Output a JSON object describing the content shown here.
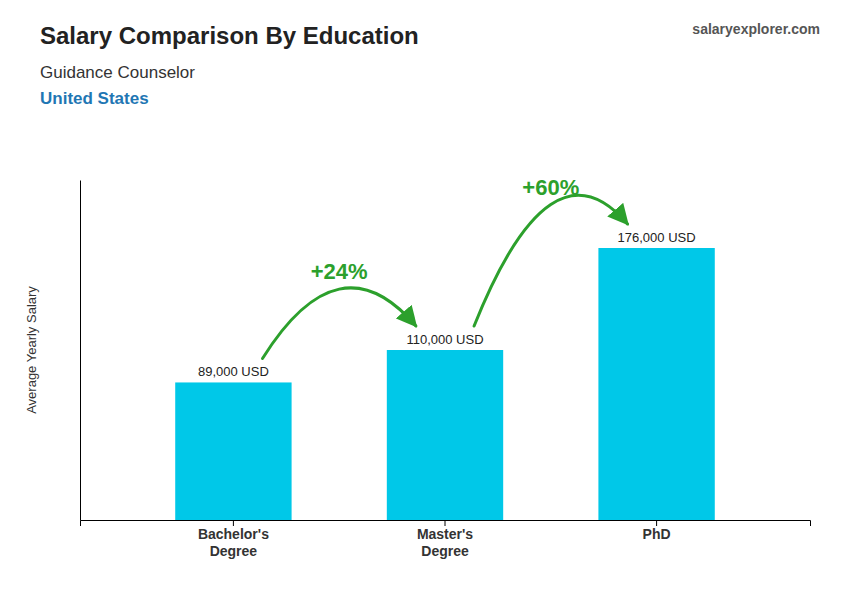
{
  "chart_data": {
    "type": "bar",
    "title": "Salary Comparison By Education",
    "subtitle": [
      "Guidance Counselor",
      "United States"
    ],
    "y_label": "Average Yearly Salary",
    "categories": [
      "Bachelor's\nDegree",
      "Master's\nDegree",
      "PhD"
    ],
    "values": [
      89000,
      110000,
      176000
    ],
    "value_labels": [
      "89,000 USD",
      "110,000 USD",
      "176,000 USD"
    ],
    "data_labels": true,
    "color": "#00c8e8",
    "ylim": [
      0,
      220000
    ],
    "tick_labels": "x",
    "grid": false,
    "annotations": [
      {
        "text": "+24%",
        "arrow": [
          0,
          1
        ]
      },
      {
        "text": "+60%",
        "arrow": [
          1,
          2
        ]
      },
      {
        "text": "salaryexplorer.com"
      }
    ]
  }
}
